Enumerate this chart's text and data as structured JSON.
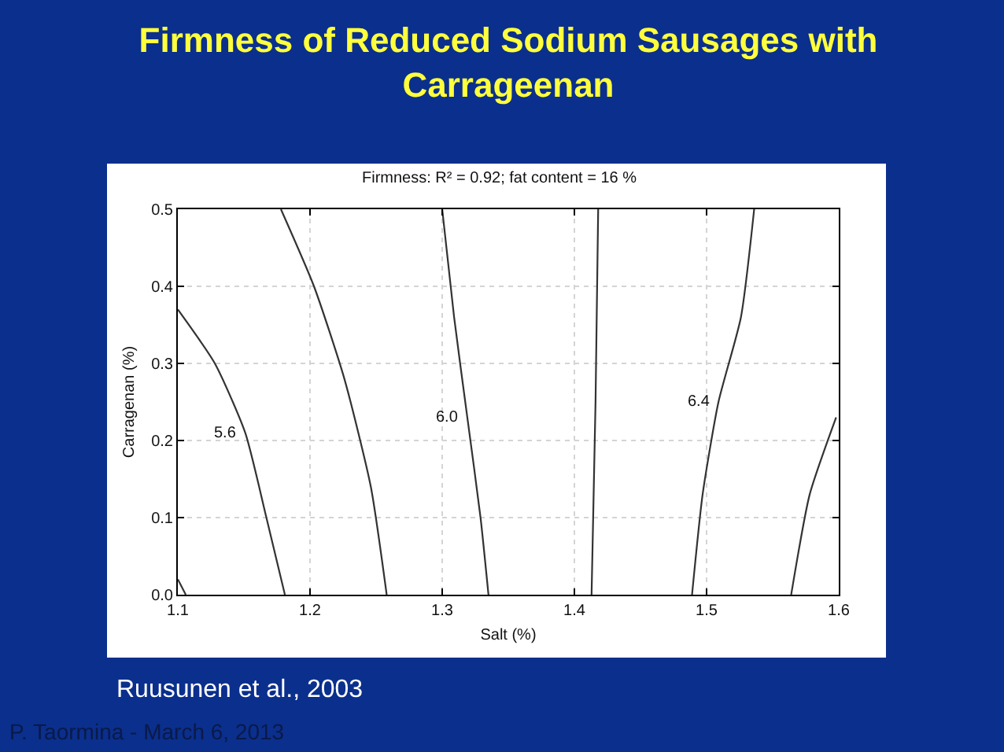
{
  "chart_data": {
    "type": "line",
    "title": "Firmness of Reduced Sodium Sausages with Carrageenan",
    "subtitle": "Firmness: R² = 0.92; fat content = 16 %",
    "xlabel": "Salt (%)",
    "ylabel": "Carragenan (%)",
    "annotations": [
      "Ruusunen et al., 2003",
      "P. Taormina - March 6, 2013"
    ],
    "series": [
      {
        "name": "5.6",
        "color": "#333333",
        "x": [
          1.1,
          1.128,
          1.151,
          1.167,
          1.181
        ],
        "values": [
          0.37,
          0.3,
          0.21,
          0.1,
          0.0
        ]
      },
      {
        "color": "#333333",
        "x": [
          1.178,
          1.203,
          1.226,
          1.246,
          1.258
        ],
        "values": [
          0.5,
          0.4,
          0.28,
          0.14,
          0.0
        ]
      },
      {
        "name": "6.0",
        "color": "#333333",
        "x": [
          1.3,
          1.309,
          1.319,
          1.329,
          1.335
        ],
        "values": [
          0.5,
          0.36,
          0.23,
          0.1,
          0.0
        ]
      },
      {
        "color": "#333333",
        "x": [
          1.418,
          1.416,
          1.413
        ],
        "values": [
          0.5,
          0.25,
          0.0
        ]
      },
      {
        "name": "6.4",
        "color": "#333333",
        "x": [
          1.536,
          1.526,
          1.509,
          1.497,
          1.489
        ],
        "values": [
          0.5,
          0.36,
          0.25,
          0.13,
          0.0
        ]
      },
      {
        "color": "#333333",
        "x": [
          1.598,
          1.578,
          1.564
        ],
        "values": [
          0.23,
          0.13,
          0.0
        ]
      },
      {
        "color": "#333333",
        "x": [
          1.1,
          1.106
        ],
        "values": [
          0.02,
          0.0
        ]
      }
    ],
    "xlim": [
      1.1,
      1.6
    ],
    "ylim": [
      0,
      0.5
    ],
    "xticks": [
      1.1,
      1.2,
      1.3,
      1.4,
      1.5,
      1.6
    ],
    "yticks": [
      {
        "value": 0,
        "label": "0.0"
      },
      0.1,
      0.2,
      0.3,
      0.4,
      0.5
    ],
    "grid": true,
    "legend": false
  }
}
